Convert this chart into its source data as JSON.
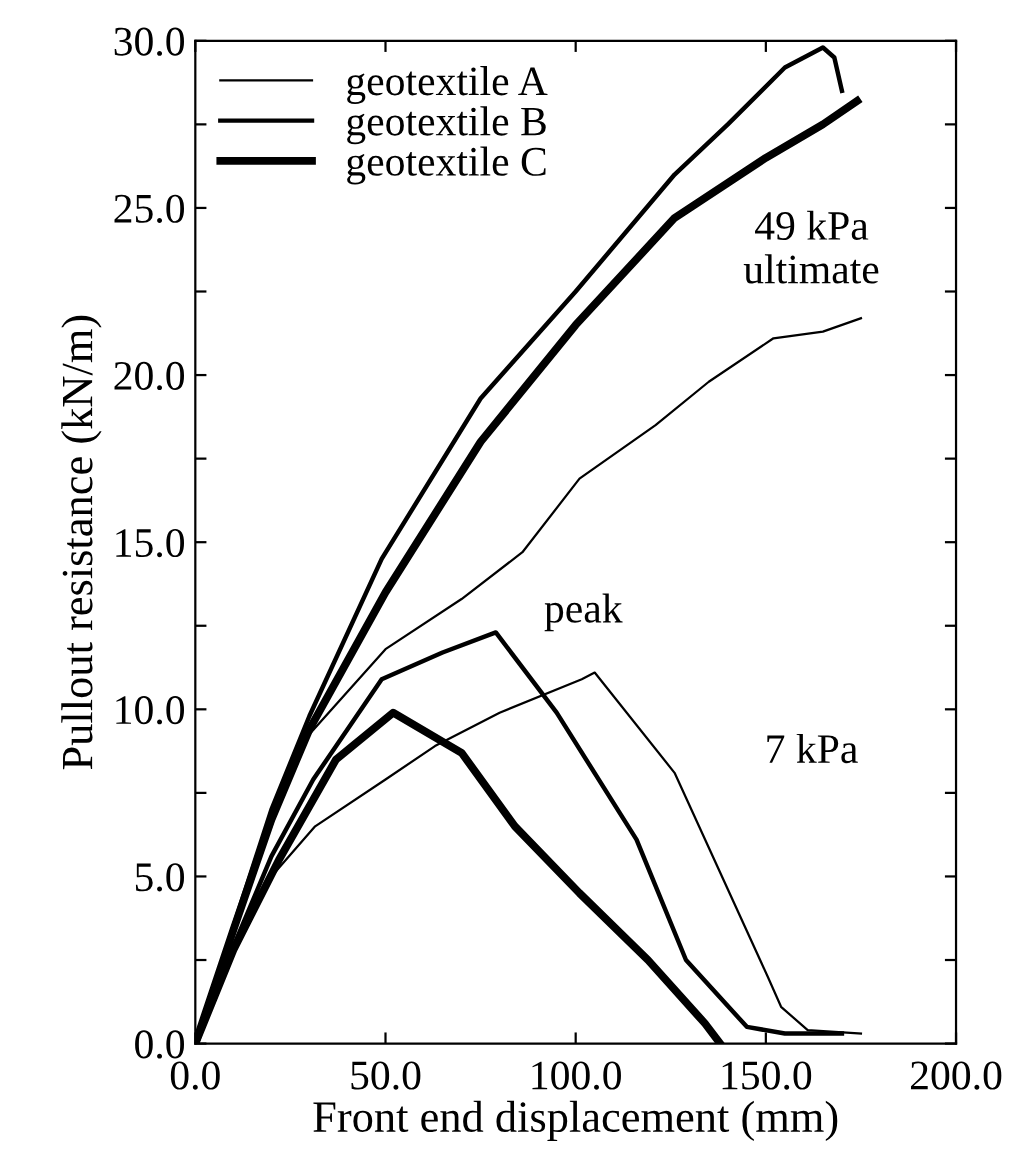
{
  "chart_data": {
    "type": "line",
    "xlabel": "Front end displacement (mm)",
    "ylabel": "Pullout resistance (kN/m)",
    "xlim": [
      0,
      200
    ],
    "ylim": [
      0,
      30
    ],
    "xticks": [
      {
        "value": 0,
        "label": "0.0"
      },
      {
        "value": 50,
        "label": "50.0"
      },
      {
        "value": 100,
        "label": "100.0"
      },
      {
        "value": 150,
        "label": "150.0"
      },
      {
        "value": 200,
        "label": "200.0"
      }
    ],
    "yticks": [
      {
        "value": 0,
        "label": "0.0"
      },
      {
        "value": 2.5,
        "label": null
      },
      {
        "value": 5,
        "label": "5.0"
      },
      {
        "value": 7.5,
        "label": null
      },
      {
        "value": 10,
        "label": "10.0"
      },
      {
        "value": 12.5,
        "label": null
      },
      {
        "value": 15,
        "label": "15.0"
      },
      {
        "value": 17.5,
        "label": null
      },
      {
        "value": 20,
        "label": "20.0"
      },
      {
        "value": 22.5,
        "label": null
      },
      {
        "value": 25,
        "label": "25.0"
      },
      {
        "value": 27.5,
        "label": null
      },
      {
        "value": 30,
        "label": "30.0"
      }
    ],
    "grid": false,
    "legend": "top left",
    "marker": "none",
    "line_style": "solid",
    "annotations": [
      "49 kPa\nultimate",
      "peak",
      "7 kPa"
    ],
    "series": [
      {
        "name": "geotextile A",
        "color": "#000000",
        "x": [
          0,
          10,
          20,
          28,
          50,
          70,
          86,
          101,
          121,
          135,
          152,
          165,
          175
        ],
        "values": [
          0,
          3.5,
          6.5,
          9,
          11.8,
          13.3,
          14.7,
          16.9,
          18.5,
          19.8,
          21.1,
          21.3,
          21.7
        ]
      },
      {
        "name": "geotextile B",
        "color": "#000000",
        "x": [
          0,
          10,
          20,
          30,
          49,
          75,
          100,
          126,
          140,
          155,
          165,
          168,
          170
        ],
        "values": [
          0,
          3.5,
          7,
          9.8,
          14.5,
          19.3,
          22.5,
          26,
          27.5,
          29.2,
          29.8,
          29.5,
          28.5
        ]
      },
      {
        "name": "geotextile C",
        "color": "#000000",
        "x": [
          0,
          10,
          20,
          30,
          50,
          75,
          100,
          126,
          150,
          165,
          174
        ],
        "values": [
          0,
          3.4,
          6.7,
          9.4,
          13.5,
          18,
          21.5,
          24.7,
          26.5,
          27.5,
          28.2
        ]
      },
      {
        "color": "#000000",
        "x": [
          0,
          10,
          20,
          31.5,
          50,
          63,
          80,
          101.6,
          105,
          126,
          150.5,
          154,
          161,
          175
        ],
        "values": [
          0,
          2.8,
          5,
          6.5,
          7.9,
          8.9,
          9.9,
          10.9,
          11.1,
          8.1,
          2,
          1.1,
          0.4,
          0.3
        ]
      },
      {
        "color": "#000000",
        "x": [
          0,
          10,
          20,
          31,
          49,
          65,
          79,
          95,
          116,
          129,
          145,
          155,
          170
        ],
        "values": [
          0,
          2.9,
          5.6,
          7.9,
          10.9,
          11.7,
          12.3,
          9.9,
          6.1,
          2.5,
          0.5,
          0.3,
          0.3
        ]
      },
      {
        "color": "#000000",
        "x": [
          0,
          10,
          22,
          37,
          52,
          70,
          84,
          101,
          119,
          134,
          138
        ],
        "values": [
          0,
          2.8,
          5.5,
          8.5,
          9.9,
          8.7,
          6.5,
          4.5,
          2.5,
          0.6,
          0
        ]
      }
    ]
  }
}
